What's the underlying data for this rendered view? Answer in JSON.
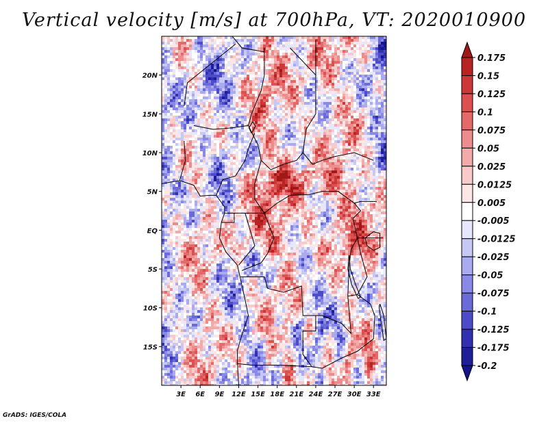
{
  "title": "Vertical velocity [m/s] at 700hPa, VT: 2020010900",
  "credit": "GrADS: IGES/COLA",
  "map": {
    "lat_labels": [
      "20N",
      "15N",
      "10N",
      "5N",
      "EQ",
      "5S",
      "10S",
      "15S"
    ],
    "lat_values": [
      20,
      15,
      10,
      5,
      0,
      -5,
      -10,
      -15
    ],
    "lon_labels": [
      "3E",
      "6E",
      "9E",
      "12E",
      "15E",
      "18E",
      "21E",
      "24E",
      "27E",
      "30E",
      "33E"
    ],
    "lon_values": [
      3,
      6,
      9,
      12,
      15,
      18,
      21,
      24,
      27,
      30,
      33
    ],
    "lon_range": [
      0,
      35
    ],
    "lat_range": [
      -20,
      25
    ]
  },
  "colorbar": {
    "labels": [
      "0.175",
      "0.15",
      "0.125",
      "0.1",
      "0.075",
      "0.05",
      "0.025",
      "0.0125",
      "0.005",
      "-0.005",
      "-0.0125",
      "-0.025",
      "-0.05",
      "-0.075",
      "-0.1",
      "-0.125",
      "-0.175",
      "-0.2"
    ],
    "colors": [
      "#a01818",
      "#b82424",
      "#cc3838",
      "#dc5050",
      "#e46a6a",
      "#ec8c8c",
      "#f2aaaa",
      "#f8caca",
      "#fce6e6",
      "#ffffff",
      "#e6e6fc",
      "#c8c8f4",
      "#aaaaee",
      "#8a8ae6",
      "#6a6ad8",
      "#4c4cc8",
      "#3030b0",
      "#1e1e98",
      "#14148a"
    ]
  },
  "colors": {
    "positive": "#cc3838",
    "negative": "#4c4cc8",
    "neutral": "#ffffff",
    "border": "#000000"
  }
}
